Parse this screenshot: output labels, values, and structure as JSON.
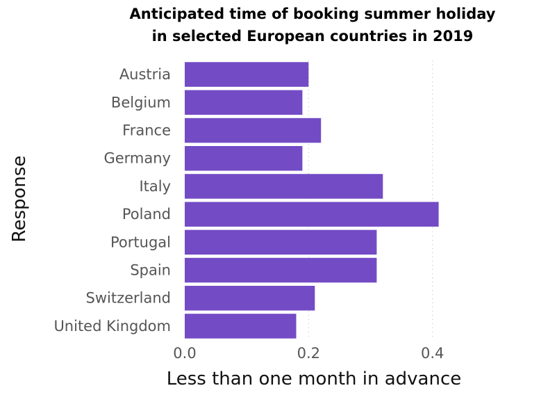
{
  "chart_data": {
    "type": "bar",
    "orientation": "horizontal",
    "title_lines": [
      "Anticipated time of booking summer holiday",
      "in selected European countries in 2019"
    ],
    "xlabel": "Less than one month in advance",
    "ylabel": "Response",
    "categories": [
      "Austria",
      "Belgium",
      "France",
      "Germany",
      "Italy",
      "Poland",
      "Portugal",
      "Spain",
      "Switzerland",
      "United Kingdom"
    ],
    "values": [
      0.2,
      0.19,
      0.22,
      0.19,
      0.32,
      0.41,
      0.31,
      0.31,
      0.21,
      0.18
    ],
    "xlim": [
      0,
      0.6
    ],
    "xticks": [
      "0.0",
      "0.2",
      "0.4"
    ],
    "grid": "vertical dotted",
    "bar_color": "#734bc5"
  }
}
